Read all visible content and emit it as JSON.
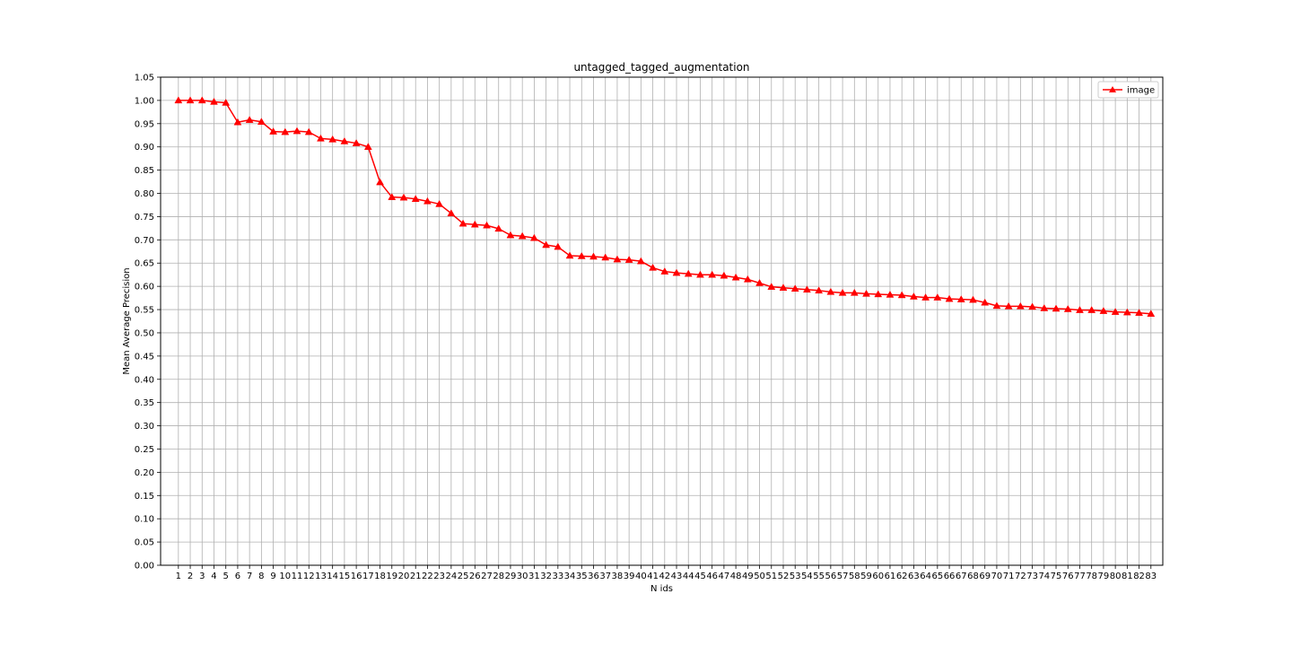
{
  "chart_data": {
    "type": "line",
    "title": "untagged_tagged_augmentation",
    "xlabel": "N ids",
    "ylabel": "Mean Average Precision",
    "ylim": [
      0,
      1.05
    ],
    "yticks": [
      "0.00",
      "0.05",
      "0.10",
      "0.15",
      "0.20",
      "0.25",
      "0.30",
      "0.35",
      "0.40",
      "0.45",
      "0.50",
      "0.55",
      "0.60",
      "0.65",
      "0.70",
      "0.75",
      "0.80",
      "0.85",
      "0.90",
      "0.95",
      "1.00",
      "1.05"
    ],
    "grid": true,
    "legend_position": "top-right",
    "x": [
      1,
      2,
      3,
      4,
      5,
      6,
      7,
      8,
      9,
      10,
      11,
      12,
      13,
      14,
      15,
      16,
      17,
      18,
      19,
      20,
      21,
      22,
      23,
      24,
      25,
      26,
      27,
      28,
      29,
      30,
      31,
      32,
      33,
      34,
      35,
      36,
      37,
      38,
      39,
      40,
      41,
      42,
      43,
      44,
      45,
      46,
      47,
      48,
      49,
      50,
      51,
      52,
      53,
      54,
      55,
      56,
      57,
      58,
      59,
      60,
      61,
      62,
      63,
      64,
      65,
      66,
      67,
      68,
      69,
      70,
      71,
      72,
      73,
      74,
      75,
      76,
      77,
      78,
      79,
      80,
      81,
      82,
      83
    ],
    "series": [
      {
        "name": "image",
        "color": "#ff0000",
        "marker": "triangle",
        "values": [
          1.0,
          1.0,
          1.0,
          0.997,
          0.995,
          0.953,
          0.958,
          0.954,
          0.933,
          0.932,
          0.934,
          0.932,
          0.918,
          0.916,
          0.912,
          0.908,
          0.9,
          0.824,
          0.792,
          0.791,
          0.788,
          0.783,
          0.777,
          0.757,
          0.735,
          0.733,
          0.731,
          0.724,
          0.71,
          0.708,
          0.704,
          0.689,
          0.685,
          0.666,
          0.665,
          0.664,
          0.662,
          0.658,
          0.657,
          0.654,
          0.64,
          0.632,
          0.629,
          0.627,
          0.625,
          0.625,
          0.623,
          0.619,
          0.615,
          0.607,
          0.599,
          0.597,
          0.595,
          0.593,
          0.591,
          0.588,
          0.586,
          0.586,
          0.584,
          0.583,
          0.582,
          0.581,
          0.578,
          0.576,
          0.576,
          0.573,
          0.572,
          0.571,
          0.565,
          0.558,
          0.557,
          0.557,
          0.556,
          0.553,
          0.552,
          0.551,
          0.549,
          0.549,
          0.547,
          0.545,
          0.544,
          0.543,
          0.541
        ]
      }
    ]
  }
}
